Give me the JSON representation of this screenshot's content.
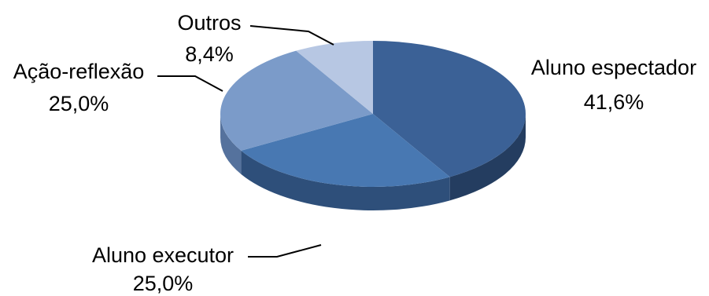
{
  "chart_data": {
    "type": "pie",
    "style": "3d",
    "legend": "none",
    "slices": [
      {
        "label": "Aluno espectador",
        "value": 41.6,
        "value_label": "41,6%",
        "color": "#3b6196",
        "side_color": "#243d60"
      },
      {
        "label": "Aluno executor",
        "value": 25.0,
        "value_label": "25,0%",
        "color": "#4878b2",
        "side_color": "#2e4f7a"
      },
      {
        "label": "Ação-reflexão",
        "value": 25.0,
        "value_label": "25,0%",
        "color": "#7b9bc9",
        "side_color": "#55729d"
      },
      {
        "label": "Outros",
        "value": 8.4,
        "value_label": "8,4%",
        "color": "#b7c7e3",
        "side_color": "#8c9fbe"
      }
    ]
  }
}
